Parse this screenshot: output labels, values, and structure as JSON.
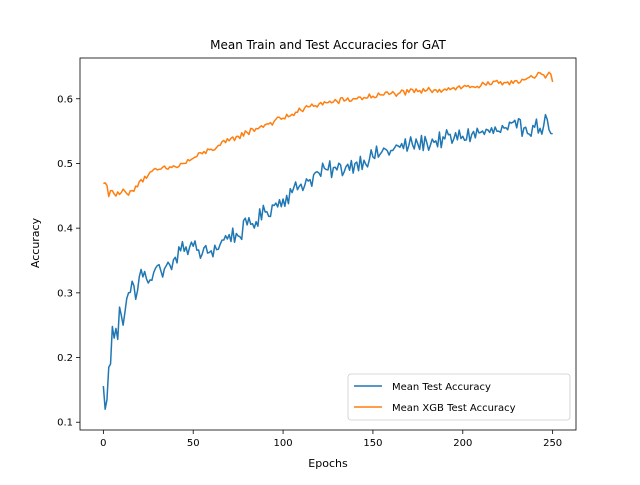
{
  "chart_data": {
    "type": "line",
    "title": "Mean Train and Test Accuracies for GAT",
    "xlabel": "Epochs",
    "ylabel": "Accuracy",
    "xlim": [
      -13,
      263
    ],
    "ylim": [
      0.088,
      0.663
    ],
    "xticks": [
      0,
      50,
      100,
      150,
      200,
      250
    ],
    "yticks": [
      0.1,
      0.2,
      0.3,
      0.4,
      0.5,
      0.6
    ],
    "grid": false,
    "legend_position": "lower-right",
    "anchors_note": "",
    "series": [
      {
        "name": "Mean Test Accuracy",
        "color": "#1f77b4",
        "anchors": [
          [
            0,
            0.156
          ],
          [
            1,
            0.12
          ],
          [
            2,
            0.135
          ],
          [
            3,
            0.185
          ],
          [
            4,
            0.19
          ],
          [
            5,
            0.248
          ],
          [
            6,
            0.23
          ],
          [
            7,
            0.245
          ],
          [
            8,
            0.228
          ],
          [
            9,
            0.278
          ],
          [
            10,
            0.265
          ],
          [
            11,
            0.25
          ],
          [
            12,
            0.27
          ],
          [
            14,
            0.3
          ],
          [
            16,
            0.318
          ],
          [
            18,
            0.29
          ],
          [
            20,
            0.325
          ],
          [
            23,
            0.333
          ],
          [
            26,
            0.32
          ],
          [
            29,
            0.338
          ],
          [
            32,
            0.334
          ],
          [
            35,
            0.342
          ],
          [
            38,
            0.336
          ],
          [
            40,
            0.355
          ],
          [
            43,
            0.365
          ],
          [
            46,
            0.371
          ],
          [
            50,
            0.372
          ],
          [
            55,
            0.36
          ],
          [
            60,
            0.365
          ],
          [
            65,
            0.375
          ],
          [
            70,
            0.39
          ],
          [
            75,
            0.388
          ],
          [
            80,
            0.405
          ],
          [
            85,
            0.41
          ],
          [
            90,
            0.425
          ],
          [
            95,
            0.435
          ],
          [
            100,
            0.445
          ],
          [
            105,
            0.455
          ],
          [
            110,
            0.468
          ],
          [
            115,
            0.475
          ],
          [
            120,
            0.485
          ],
          [
            125,
            0.49
          ],
          [
            130,
            0.49
          ],
          [
            135,
            0.495
          ],
          [
            140,
            0.5
          ],
          [
            145,
            0.505
          ],
          [
            150,
            0.51
          ],
          [
            155,
            0.518
          ],
          [
            160,
            0.52
          ],
          [
            165,
            0.525
          ],
          [
            170,
            0.528
          ],
          [
            175,
            0.53
          ],
          [
            180,
            0.532
          ],
          [
            185,
            0.535
          ],
          [
            190,
            0.538
          ],
          [
            195,
            0.538
          ],
          [
            200,
            0.542
          ],
          [
            205,
            0.545
          ],
          [
            210,
            0.548
          ],
          [
            215,
            0.548
          ],
          [
            220,
            0.55
          ],
          [
            225,
            0.552
          ],
          [
            230,
            0.555
          ],
          [
            235,
            0.556
          ],
          [
            240,
            0.556
          ],
          [
            245,
            0.558
          ],
          [
            247,
            0.568
          ],
          [
            248,
            0.552
          ],
          [
            250,
            0.546
          ]
        ],
        "noise": 0.014
      },
      {
        "name": "Mean XGB Test Accuracy",
        "color": "#ff7f0e",
        "anchors": [
          [
            0,
            0.469
          ],
          [
            1,
            0.47
          ],
          [
            2,
            0.466
          ],
          [
            3,
            0.449
          ],
          [
            4,
            0.458
          ],
          [
            6,
            0.453
          ],
          [
            8,
            0.456
          ],
          [
            10,
            0.455
          ],
          [
            12,
            0.457
          ],
          [
            14,
            0.451
          ],
          [
            16,
            0.458
          ],
          [
            18,
            0.465
          ],
          [
            20,
            0.472
          ],
          [
            25,
            0.482
          ],
          [
            30,
            0.49
          ],
          [
            35,
            0.492
          ],
          [
            40,
            0.495
          ],
          [
            45,
            0.5
          ],
          [
            50,
            0.508
          ],
          [
            55,
            0.515
          ],
          [
            60,
            0.522
          ],
          [
            65,
            0.528
          ],
          [
            70,
            0.535
          ],
          [
            75,
            0.542
          ],
          [
            80,
            0.548
          ],
          [
            85,
            0.554
          ],
          [
            90,
            0.56
          ],
          [
            95,
            0.565
          ],
          [
            100,
            0.57
          ],
          [
            105,
            0.576
          ],
          [
            110,
            0.582
          ],
          [
            115,
            0.588
          ],
          [
            120,
            0.592
          ],
          [
            125,
            0.594
          ],
          [
            130,
            0.596
          ],
          [
            135,
            0.598
          ],
          [
            140,
            0.6
          ],
          [
            145,
            0.602
          ],
          [
            150,
            0.604
          ],
          [
            155,
            0.606
          ],
          [
            160,
            0.608
          ],
          [
            165,
            0.609
          ],
          [
            170,
            0.61
          ],
          [
            175,
            0.611
          ],
          [
            180,
            0.613
          ],
          [
            185,
            0.614
          ],
          [
            190,
            0.615
          ],
          [
            195,
            0.617
          ],
          [
            200,
            0.618
          ],
          [
            205,
            0.619
          ],
          [
            210,
            0.62
          ],
          [
            215,
            0.622
          ],
          [
            220,
            0.624
          ],
          [
            225,
            0.626
          ],
          [
            230,
            0.628
          ],
          [
            235,
            0.63
          ],
          [
            240,
            0.632
          ],
          [
            243,
            0.64
          ],
          [
            246,
            0.632
          ],
          [
            248,
            0.641
          ],
          [
            250,
            0.626
          ]
        ],
        "noise": 0.005
      }
    ]
  }
}
